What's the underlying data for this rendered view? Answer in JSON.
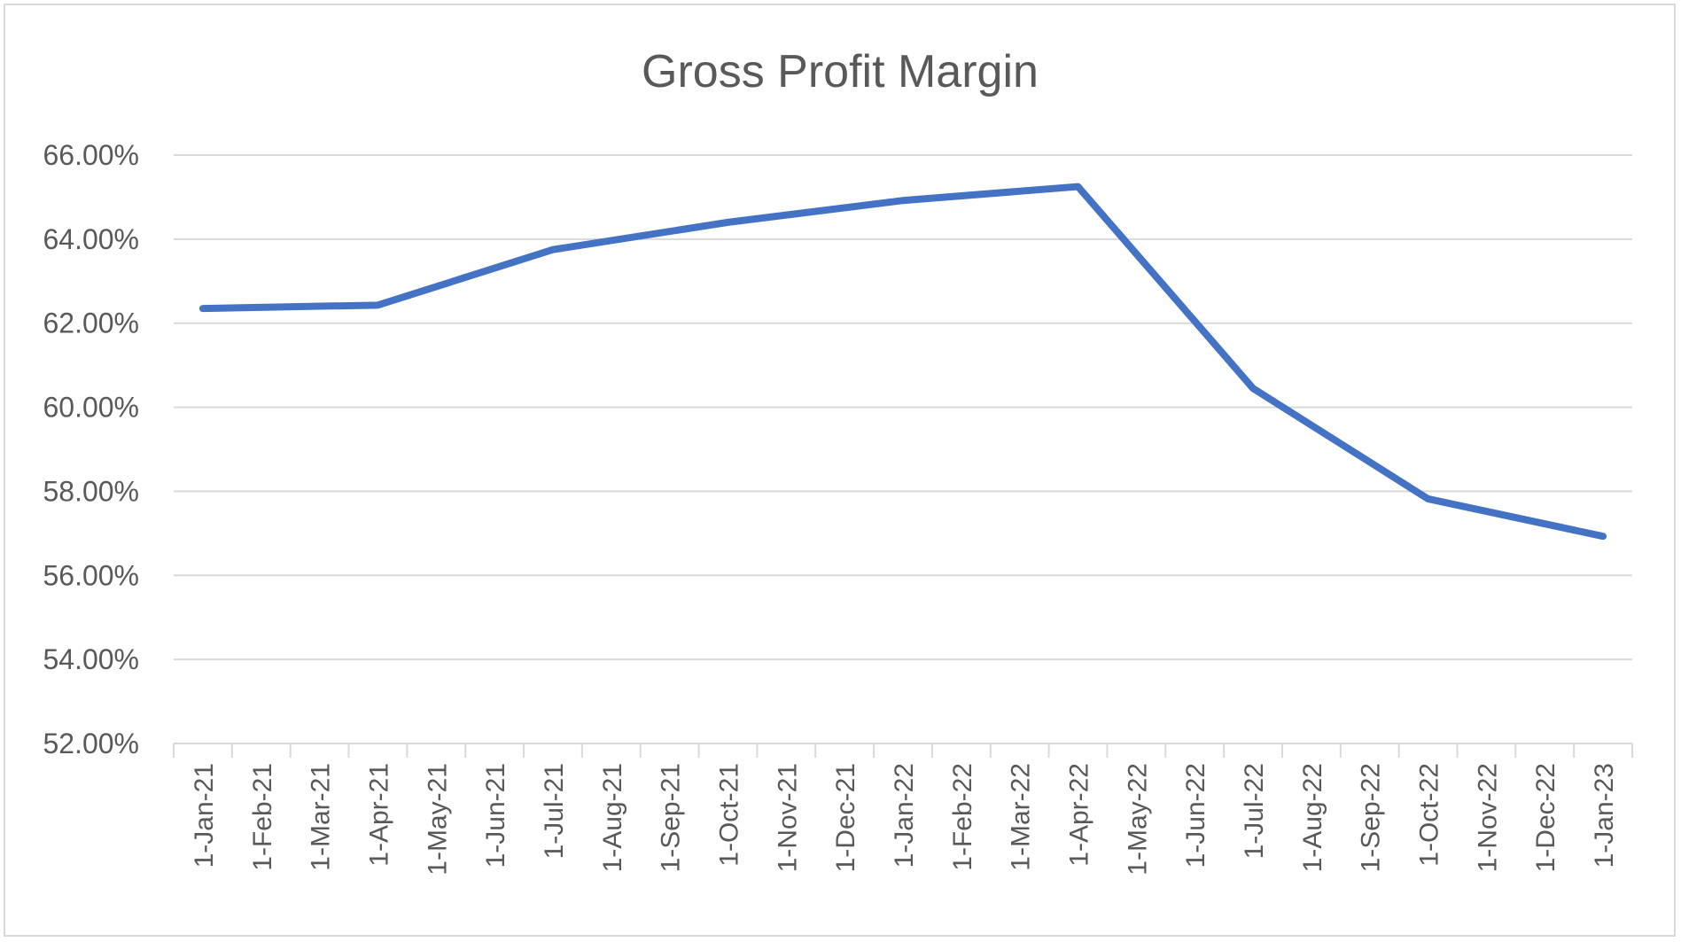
{
  "chart_data": {
    "type": "line",
    "title": "Gross Profit Margin",
    "xlabel": "",
    "ylabel": "",
    "ylim": [
      52,
      66
    ],
    "y_ticks": [
      "52.00%",
      "54.00%",
      "56.00%",
      "58.00%",
      "60.00%",
      "62.00%",
      "64.00%",
      "66.00%"
    ],
    "grid": true,
    "legend": "none",
    "categories": [
      "1-Jan-21",
      "1-Feb-21",
      "1-Mar-21",
      "1-Apr-21",
      "1-May-21",
      "1-Jun-21",
      "1-Jul-21",
      "1-Aug-21",
      "1-Sep-21",
      "1-Oct-21",
      "1-Nov-21",
      "1-Dec-21",
      "1-Jan-22",
      "1-Feb-22",
      "1-Mar-22",
      "1-Apr-22",
      "1-May-22",
      "1-Jun-22",
      "1-Jul-22",
      "1-Aug-22",
      "1-Sep-22",
      "1-Oct-22",
      "1-Nov-22",
      "1-Dec-22",
      "1-Jan-23"
    ],
    "series": [
      {
        "color": "#4472c4",
        "points": [
          {
            "x": "1-Jan-21",
            "y": 62.35
          },
          {
            "x": "1-Apr-21",
            "y": 62.43
          },
          {
            "x": "1-Jul-21",
            "y": 63.75
          },
          {
            "x": "1-Oct-21",
            "y": 64.4
          },
          {
            "x": "1-Jan-22",
            "y": 64.92
          },
          {
            "x": "1-Apr-22",
            "y": 65.25
          },
          {
            "x": "1-Jul-22",
            "y": 60.45
          },
          {
            "x": "1-Oct-22",
            "y": 57.82
          },
          {
            "x": "1-Jan-23",
            "y": 56.93
          }
        ]
      }
    ],
    "colors": {
      "gridline": "#d9d9d9",
      "text": "#595959",
      "border": "#d9d9d9"
    }
  }
}
